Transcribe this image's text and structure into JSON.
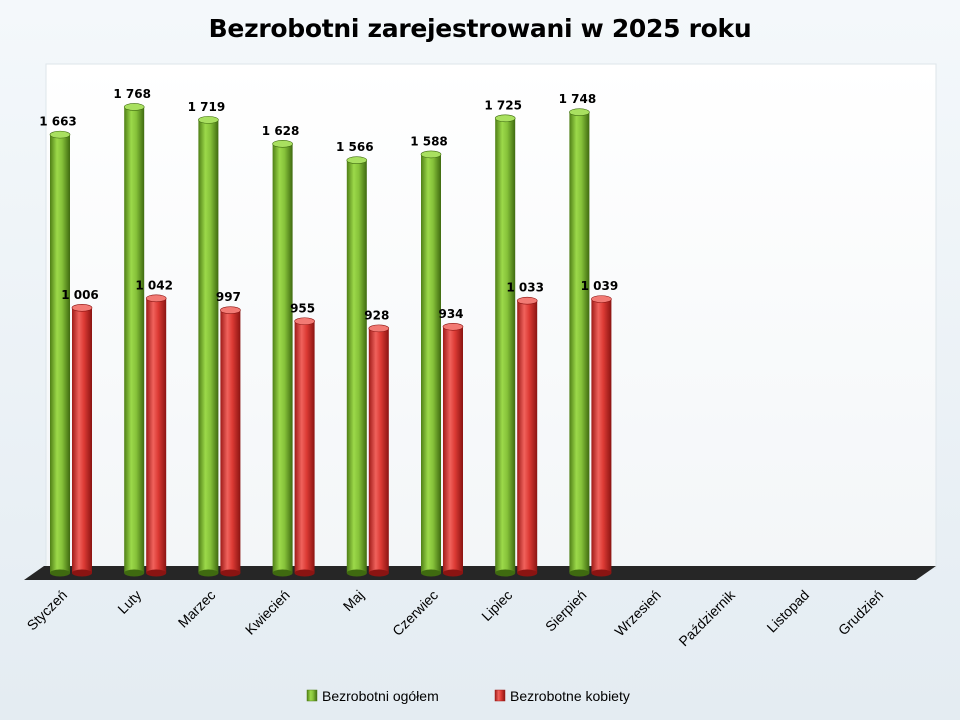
{
  "chart_data": {
    "type": "bar",
    "title": "Bezrobotni zarejestrowani w 2025 roku",
    "categories": [
      "Styczeń",
      "Luty",
      "Marzec",
      "Kwiecień",
      "Maj",
      "Czerwiec",
      "Lipiec",
      "Sierpień",
      "Wrzesień",
      "Październik",
      "Listopad",
      "Grudzień"
    ],
    "series": [
      {
        "name": "Bezrobotni ogółem",
        "values": [
          1663,
          1768,
          1719,
          1628,
          1566,
          1588,
          1725,
          1748,
          null,
          null,
          null,
          null
        ],
        "labels": [
          "1 663",
          "1 768",
          "1 719",
          "1 628",
          "1 566",
          "1 588",
          "1 725",
          "1 748",
          "",
          "",
          "",
          ""
        ],
        "color": "#7cb82f"
      },
      {
        "name": "Bezrobotne kobiety",
        "values": [
          1006,
          1042,
          997,
          955,
          928,
          934,
          1033,
          1039,
          null,
          null,
          null,
          null
        ],
        "labels": [
          "1 006",
          "1 042",
          "997",
          "955",
          "928",
          "934",
          "1 033",
          "1 039",
          "",
          "",
          "",
          ""
        ],
        "color": "#d9322e"
      }
    ],
    "ylim": [
      0,
      1800
    ],
    "grid": false,
    "legend": "bottom",
    "style": "3d-cylinder"
  }
}
